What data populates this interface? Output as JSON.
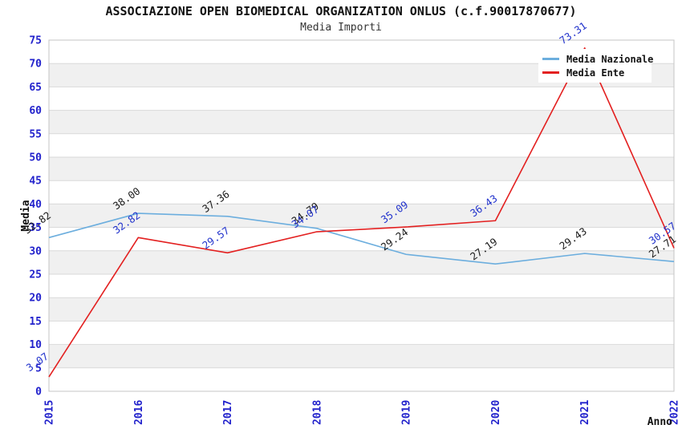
{
  "chart_data": {
    "type": "line",
    "title": "ASSOCIAZIONE OPEN BIOMEDICAL ORGANIZATION ONLUS (c.f.90017870677)",
    "subtitle": "Media Importi",
    "xlabel": "Anno",
    "ylabel": "Media",
    "x": [
      "2015",
      "2016",
      "2017",
      "2018",
      "2019",
      "2020",
      "2021",
      "2022"
    ],
    "ylim": [
      0,
      75
    ],
    "ytick_step": 5,
    "grid": "horizontal gridlines with alternating shaded bands every 5 units",
    "legend_position": "top-right",
    "series": [
      {
        "name": "Media Nazionale",
        "color": "#6caede",
        "label_color": "#1a1a1a",
        "values": [
          32.82,
          38.0,
          37.36,
          34.79,
          29.24,
          27.19,
          29.43,
          27.71
        ]
      },
      {
        "name": "Media Ente",
        "color": "#e32020",
        "label_color": "#2233cc",
        "values": [
          3.07,
          32.82,
          29.57,
          34.07,
          35.09,
          36.43,
          73.31,
          30.57
        ]
      }
    ],
    "colors": {
      "tick_label": "#2222cc",
      "axis_label": "#111111",
      "band": "#f0f0f0",
      "grid": "#d9d9d9",
      "frame": "#c4c4c4",
      "background": "#ffffff"
    }
  }
}
